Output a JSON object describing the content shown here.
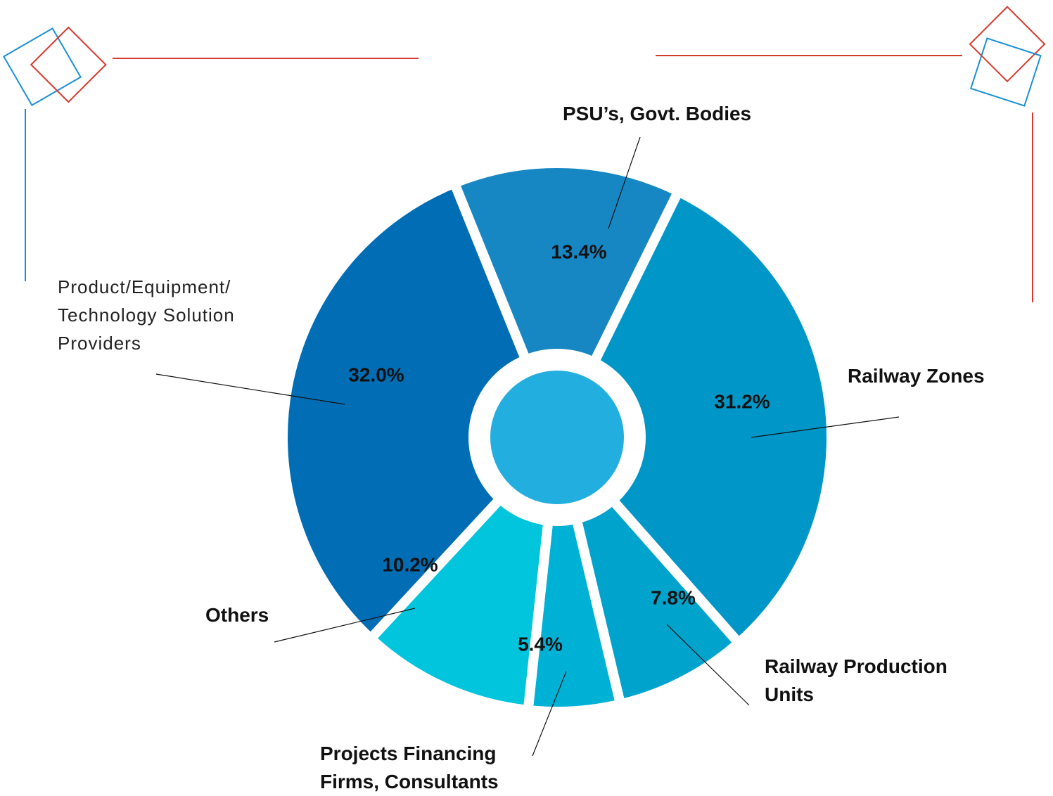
{
  "chart_data": {
    "type": "donut",
    "categories": [
      "PSU’s, Govt. Bodies",
      "Railway Zones",
      "Railway Production Units",
      "Projects Financing Firms, Consultants",
      "Others",
      "Product/Equipment/ Technology Solution Providers"
    ],
    "values": [
      13.4,
      31.2,
      7.8,
      5.4,
      10.2,
      32.0
    ],
    "value_labels": [
      "13.4%",
      "31.2%",
      "7.8%",
      "5.4%",
      "10.2%",
      "32.0%"
    ],
    "colors": [
      "#1787c4",
      "#0097c8",
      "#00a3cc",
      "#00b1d6",
      "#00c5dc",
      "#006db5"
    ]
  }
}
